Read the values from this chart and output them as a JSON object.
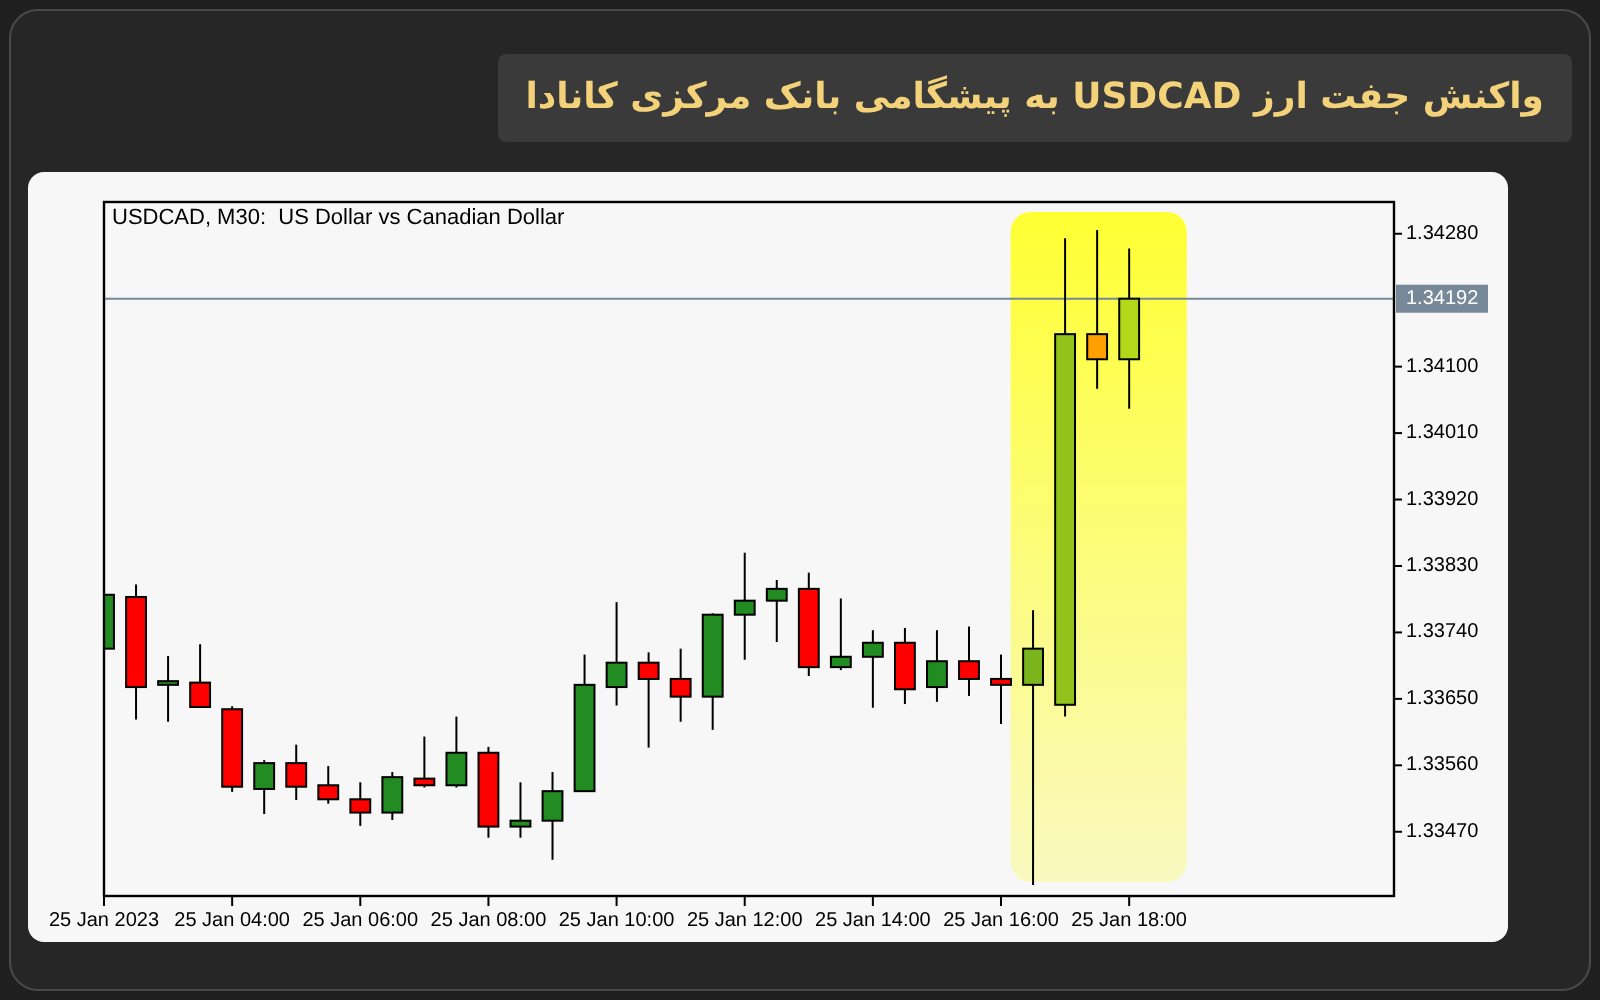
{
  "chart_data": {
    "type": "candlestick",
    "title": "واکنش جفت ارز USDCAD به پیشگامی بانک مرکزی کانادا",
    "subtitle": "USDCAD, M30:  US Dollar vs Canadian Dollar",
    "x": [
      "2023-01-25T02:00",
      "2023-01-25T02:30",
      "2023-01-25T03:00",
      "2023-01-25T03:30",
      "2023-01-25T04:00",
      "2023-01-25T04:30",
      "2023-01-25T05:00",
      "2023-01-25T05:30",
      "2023-01-25T06:00",
      "2023-01-25T06:30",
      "2023-01-25T07:00",
      "2023-01-25T07:30",
      "2023-01-25T08:00",
      "2023-01-25T08:30",
      "2023-01-25T09:00",
      "2023-01-25T09:30",
      "2023-01-25T10:00",
      "2023-01-25T10:30",
      "2023-01-25T11:00",
      "2023-01-25T11:30",
      "2023-01-25T12:00",
      "2023-01-25T12:30",
      "2023-01-25T13:00",
      "2023-01-25T13:30",
      "2023-01-25T14:00",
      "2023-01-25T14:30",
      "2023-01-25T15:00",
      "2023-01-25T15:30",
      "2023-01-25T16:00",
      "2023-01-25T16:30",
      "2023-01-25T17:00",
      "2023-01-25T17:30",
      "2023-01-25T18:00"
    ],
    "ohlc": [
      [
        1.33718,
        1.33791,
        1.33718,
        1.33791
      ],
      [
        1.33788,
        1.33805,
        1.33622,
        1.33666
      ],
      [
        1.33669,
        1.33708,
        1.33619,
        1.33674
      ],
      [
        1.33672,
        1.33724,
        1.33639,
        1.33639
      ],
      [
        1.33636,
        1.3364,
        1.33524,
        1.33531
      ],
      [
        1.33528,
        1.33567,
        1.33494,
        1.33563
      ],
      [
        1.33563,
        1.33588,
        1.33513,
        1.33531
      ],
      [
        1.33533,
        1.33559,
        1.33508,
        1.33514
      ],
      [
        1.33514,
        1.33537,
        1.33478,
        1.33496
      ],
      [
        1.33496,
        1.33551,
        1.33486,
        1.33544
      ],
      [
        1.33542,
        1.33599,
        1.3353,
        1.33533
      ],
      [
        1.33533,
        1.33626,
        1.3353,
        1.33577
      ],
      [
        1.33577,
        1.33585,
        1.33462,
        1.33477
      ],
      [
        1.33477,
        1.33537,
        1.33462,
        1.33485
      ],
      [
        1.33485,
        1.33551,
        1.33432,
        1.33525
      ],
      [
        1.33525,
        1.3371,
        1.33525,
        1.33669
      ],
      [
        1.33666,
        1.33781,
        1.33641,
        1.33699
      ],
      [
        1.33699,
        1.33713,
        1.33584,
        1.33677
      ],
      [
        1.33677,
        1.33718,
        1.33619,
        1.33653
      ],
      [
        1.33653,
        1.33766,
        1.33608,
        1.33764
      ],
      [
        1.33764,
        1.33848,
        1.33703,
        1.33783
      ],
      [
        1.33783,
        1.33811,
        1.33727,
        1.33799
      ],
      [
        1.33799,
        1.33821,
        1.33681,
        1.33693
      ],
      [
        1.33693,
        1.33786,
        1.33689,
        1.33707
      ],
      [
        1.33707,
        1.33743,
        1.33638,
        1.33726
      ],
      [
        1.33726,
        1.33746,
        1.33643,
        1.33663
      ],
      [
        1.33666,
        1.33743,
        1.33646,
        1.33701
      ],
      [
        1.33701,
        1.33748,
        1.33654,
        1.33677
      ],
      [
        1.33677,
        1.3371,
        1.33616,
        1.33669
      ],
      [
        1.33669,
        1.3377,
        1.33398,
        1.33718
      ],
      [
        1.33642,
        1.34274,
        1.33626,
        1.34144
      ],
      [
        1.34144,
        1.34285,
        1.3407,
        1.3411
      ],
      [
        1.3411,
        1.3426,
        1.34043,
        1.34192
      ]
    ],
    "colors": [
      "#228b22",
      "#ff0000",
      "#228b22",
      "#ff0000",
      "#ff0000",
      "#228b22",
      "#ff0000",
      "#ff0000",
      "#ff0000",
      "#228b22",
      "#ff0000",
      "#228b22",
      "#ff0000",
      "#228b22",
      "#228b22",
      "#228b22",
      "#228b22",
      "#ff0000",
      "#ff0000",
      "#228b22",
      "#228b22",
      "#228b22",
      "#ff0000",
      "#228b22",
      "#228b22",
      "#ff0000",
      "#228b22",
      "#ff0000",
      "#ff0000",
      "#7ab51d",
      "#93c31b",
      "#ffa000",
      "#b3d719"
    ],
    "xlim": [
      "2023-01-25T02:00",
      "2023-01-25T22:08"
    ],
    "ylim": [
      1.33383,
      1.34323
    ],
    "xticks": [
      {
        "value": "2023-01-25T02:00",
        "label": "25 Jan 2023"
      },
      {
        "value": "2023-01-25T04:00",
        "label": "25 Jan 04:00"
      },
      {
        "value": "2023-01-25T06:00",
        "label": "25 Jan 06:00"
      },
      {
        "value": "2023-01-25T08:00",
        "label": "25 Jan 08:00"
      },
      {
        "value": "2023-01-25T10:00",
        "label": "25 Jan 10:00"
      },
      {
        "value": "2023-01-25T12:00",
        "label": "25 Jan 12:00"
      },
      {
        "value": "2023-01-25T14:00",
        "label": "25 Jan 14:00"
      },
      {
        "value": "2023-01-25T16:00",
        "label": "25 Jan 16:00"
      },
      {
        "value": "2023-01-25T18:00",
        "label": "25 Jan 18:00"
      }
    ],
    "yticks": [
      {
        "value": 1.3347,
        "label": "1.33470"
      },
      {
        "value": 1.3356,
        "label": "1.33560"
      },
      {
        "value": 1.3365,
        "label": "1.33650"
      },
      {
        "value": 1.3374,
        "label": "1.33740"
      },
      {
        "value": 1.3383,
        "label": "1.33830"
      },
      {
        "value": 1.3392,
        "label": "1.33920"
      },
      {
        "value": 1.3401,
        "label": "1.34010"
      },
      {
        "value": 1.341,
        "label": "1.34100"
      },
      {
        "value": 1.3428,
        "label": "1.34280"
      }
    ],
    "ref_lines": [
      {
        "axis": "y",
        "value": 1.34192,
        "label": "1.34192",
        "color": "#778899"
      }
    ],
    "bands": [
      {
        "axis": "x",
        "from": "2023-01-25T16:09",
        "to": "2023-01-25T18:54",
        "color": "#ffff33"
      }
    ]
  }
}
